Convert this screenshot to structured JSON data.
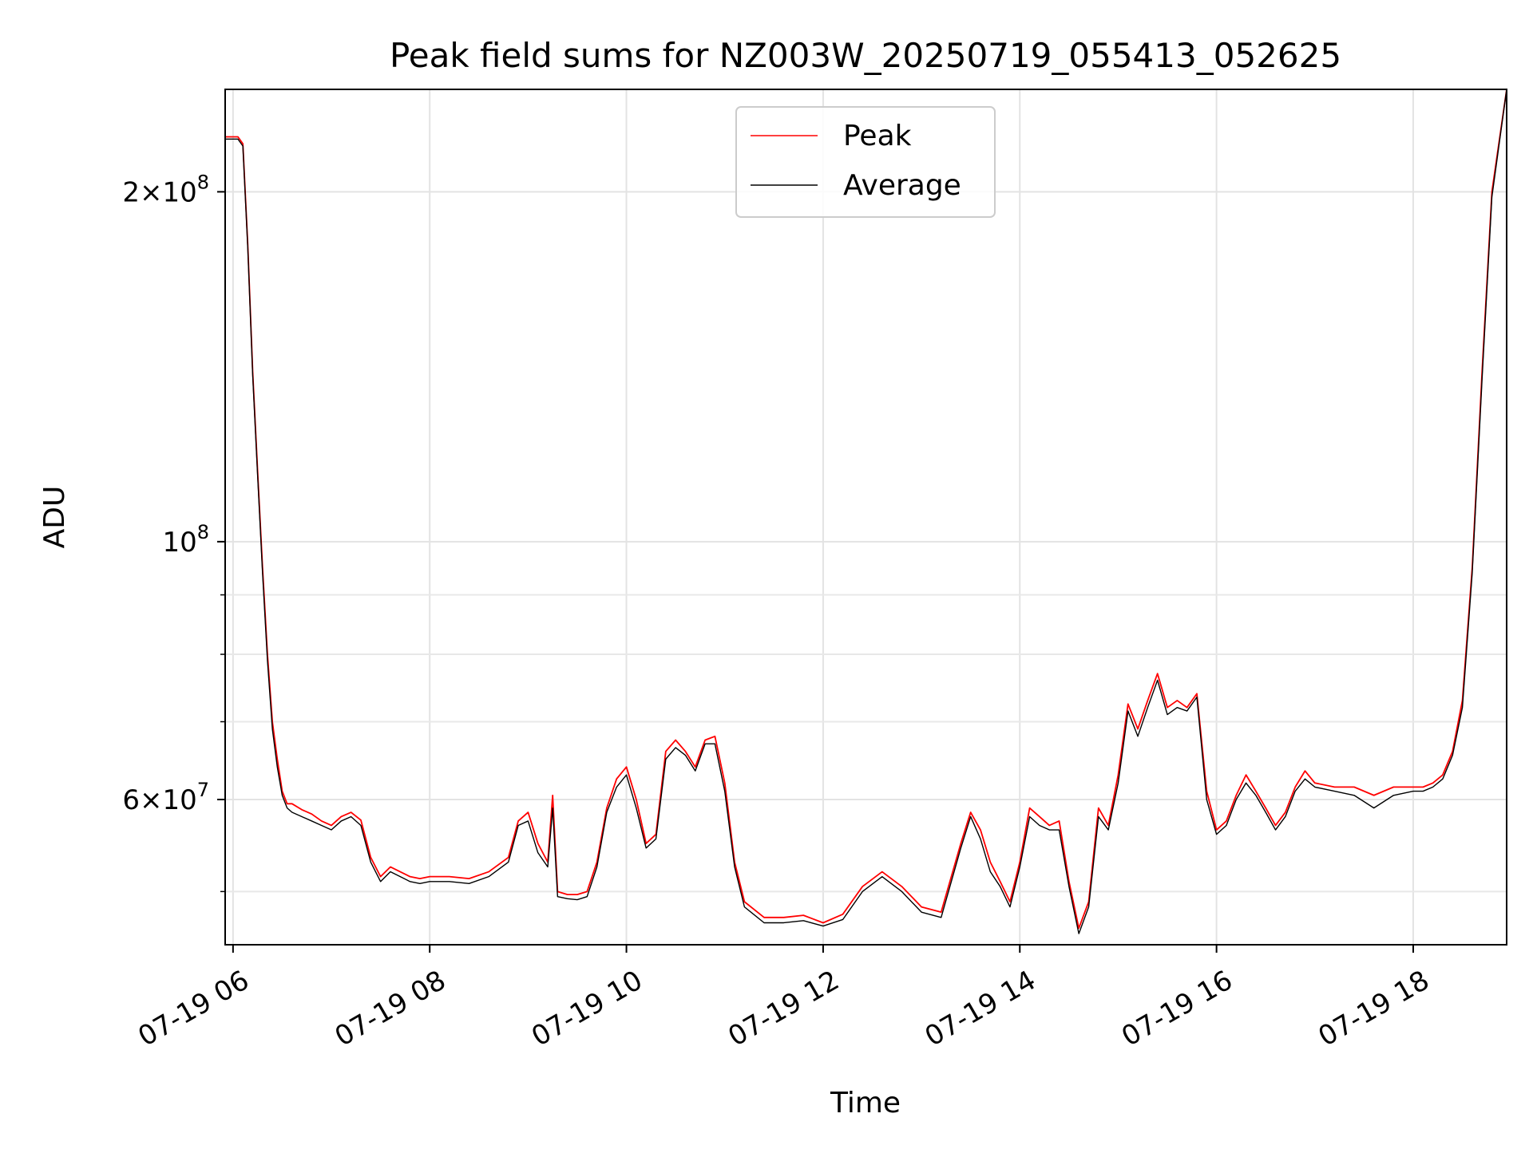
{
  "chart_data": {
    "type": "line",
    "title": "Peak field sums for NZ003W_20250719_055413_052625",
    "xlabel": "Time",
    "ylabel": "ADU",
    "x_unit": "hours (2025-07-19)",
    "xlim": [
      5.92,
      18.95
    ],
    "ylim": [
      45000000,
      245000000
    ],
    "yscale": "log",
    "grid": true,
    "legend_position": "top-center",
    "x_ticks": [
      {
        "value": 6,
        "label": "07-19 06"
      },
      {
        "value": 8,
        "label": "07-19 08"
      },
      {
        "value": 10,
        "label": "07-19 10"
      },
      {
        "value": 12,
        "label": "07-19 12"
      },
      {
        "value": 14,
        "label": "07-19 14"
      },
      {
        "value": 16,
        "label": "07-19 16"
      },
      {
        "value": 18,
        "label": "07-19 18"
      }
    ],
    "y_ticks": [
      {
        "value": 60000000,
        "mantissa": "6",
        "exponent": "7"
      },
      {
        "value": 100000000,
        "mantissa": "",
        "exponent": "8"
      },
      {
        "value": 200000000,
        "mantissa": "2",
        "exponent": "8"
      }
    ],
    "y_minor_ticks": [
      50000000,
      70000000,
      80000000,
      90000000
    ],
    "series": [
      {
        "name": "Peak",
        "color": "#ff0000",
        "x": [
          5.92,
          6.05,
          6.1,
          6.15,
          6.2,
          6.25,
          6.3,
          6.35,
          6.4,
          6.45,
          6.5,
          6.55,
          6.6,
          6.7,
          6.8,
          6.9,
          7.0,
          7.1,
          7.2,
          7.3,
          7.4,
          7.5,
          7.6,
          7.7,
          7.8,
          7.9,
          8.0,
          8.2,
          8.4,
          8.6,
          8.8,
          8.9,
          9.0,
          9.1,
          9.2,
          9.25,
          9.3,
          9.4,
          9.5,
          9.6,
          9.7,
          9.8,
          9.9,
          10.0,
          10.1,
          10.2,
          10.3,
          10.4,
          10.5,
          10.6,
          10.7,
          10.8,
          10.9,
          11.0,
          11.1,
          11.2,
          11.4,
          11.6,
          11.8,
          12.0,
          12.2,
          12.4,
          12.6,
          12.8,
          13.0,
          13.2,
          13.4,
          13.5,
          13.6,
          13.7,
          13.8,
          13.9,
          14.0,
          14.1,
          14.2,
          14.3,
          14.4,
          14.5,
          14.6,
          14.7,
          14.8,
          14.9,
          15.0,
          15.1,
          15.2,
          15.3,
          15.4,
          15.5,
          15.6,
          15.7,
          15.8,
          15.9,
          16.0,
          16.1,
          16.2,
          16.3,
          16.4,
          16.5,
          16.6,
          16.7,
          16.8,
          16.9,
          17.0,
          17.2,
          17.4,
          17.6,
          17.8,
          18.0,
          18.1,
          18.2,
          18.3,
          18.4,
          18.5,
          18.6,
          18.7,
          18.8,
          18.95
        ],
        "values": [
          223000000,
          223000000,
          220000000,
          180000000,
          140000000,
          115000000,
          95000000,
          80000000,
          70000000,
          65000000,
          61000000,
          59500000,
          59500000,
          58800000,
          58300000,
          57500000,
          57000000,
          58000000,
          58500000,
          57600000,
          53500000,
          51500000,
          52500000,
          52000000,
          51500000,
          51300000,
          51500000,
          51500000,
          51300000,
          52000000,
          53500000,
          57500000,
          58500000,
          55000000,
          53000000,
          60500000,
          50000000,
          49700000,
          49700000,
          50000000,
          53000000,
          59000000,
          62500000,
          64000000,
          60000000,
          55000000,
          56000000,
          66000000,
          67500000,
          66000000,
          64000000,
          67500000,
          68000000,
          62000000,
          53000000,
          49000000,
          47500000,
          47500000,
          47700000,
          47000000,
          47800000,
          50500000,
          52000000,
          50500000,
          48500000,
          48000000,
          55000000,
          58500000,
          56500000,
          53000000,
          51000000,
          49000000,
          53000000,
          59000000,
          58000000,
          57000000,
          57500000,
          51000000,
          46500000,
          49000000,
          59000000,
          57000000,
          63000000,
          72500000,
          69000000,
          73000000,
          77000000,
          72000000,
          73000000,
          72000000,
          74000000,
          61000000,
          56500000,
          57500000,
          60500000,
          63000000,
          61000000,
          59000000,
          57000000,
          58500000,
          61500000,
          63500000,
          62000000,
          61500000,
          61500000,
          60500000,
          61500000,
          61500000,
          61500000,
          62000000,
          63000000,
          66000000,
          73000000,
          95000000,
          140000000,
          200000000,
          245000000
        ]
      },
      {
        "name": "Average",
        "color": "#000000",
        "x": [
          5.92,
          6.05,
          6.1,
          6.15,
          6.2,
          6.25,
          6.3,
          6.35,
          6.4,
          6.45,
          6.5,
          6.55,
          6.6,
          6.7,
          6.8,
          6.9,
          7.0,
          7.1,
          7.2,
          7.3,
          7.4,
          7.5,
          7.6,
          7.7,
          7.8,
          7.9,
          8.0,
          8.2,
          8.4,
          8.6,
          8.8,
          8.9,
          9.0,
          9.1,
          9.2,
          9.25,
          9.3,
          9.4,
          9.5,
          9.6,
          9.7,
          9.8,
          9.9,
          10.0,
          10.1,
          10.2,
          10.3,
          10.4,
          10.5,
          10.6,
          10.7,
          10.8,
          10.9,
          11.0,
          11.1,
          11.2,
          11.4,
          11.6,
          11.8,
          12.0,
          12.2,
          12.4,
          12.6,
          12.8,
          13.0,
          13.2,
          13.4,
          13.5,
          13.6,
          13.7,
          13.8,
          13.9,
          14.0,
          14.1,
          14.2,
          14.3,
          14.4,
          14.5,
          14.6,
          14.7,
          14.8,
          14.9,
          15.0,
          15.1,
          15.2,
          15.3,
          15.4,
          15.5,
          15.6,
          15.7,
          15.8,
          15.9,
          16.0,
          16.1,
          16.2,
          16.3,
          16.4,
          16.5,
          16.6,
          16.7,
          16.8,
          16.9,
          17.0,
          17.2,
          17.4,
          17.6,
          17.8,
          18.0,
          18.1,
          18.2,
          18.3,
          18.4,
          18.5,
          18.6,
          18.7,
          18.8,
          18.95
        ],
        "values": [
          222000000,
          222000000,
          219000000,
          179000000,
          139000000,
          114000000,
          94000000,
          79000000,
          69000000,
          64000000,
          60500000,
          59000000,
          58500000,
          58000000,
          57500000,
          57000000,
          56500000,
          57500000,
          58000000,
          57000000,
          53000000,
          51000000,
          52000000,
          51500000,
          51000000,
          50800000,
          51000000,
          51000000,
          50800000,
          51500000,
          53000000,
          57000000,
          57500000,
          54000000,
          52500000,
          59000000,
          49500000,
          49300000,
          49200000,
          49500000,
          52500000,
          58500000,
          61500000,
          63000000,
          59000000,
          54500000,
          55500000,
          65000000,
          66500000,
          65500000,
          63500000,
          67000000,
          67000000,
          61000000,
          52500000,
          48500000,
          47000000,
          47000000,
          47200000,
          46700000,
          47300000,
          50000000,
          51500000,
          50000000,
          48000000,
          47500000,
          54500000,
          58000000,
          55500000,
          52000000,
          50500000,
          48500000,
          52500000,
          58000000,
          57000000,
          56500000,
          56500000,
          50500000,
          46000000,
          48500000,
          58000000,
          56500000,
          62000000,
          71500000,
          68000000,
          72000000,
          76000000,
          71000000,
          72000000,
          71500000,
          73500000,
          60000000,
          56000000,
          57000000,
          60000000,
          62000000,
          60500000,
          58500000,
          56500000,
          58000000,
          61000000,
          62500000,
          61500000,
          61000000,
          60500000,
          59000000,
          60500000,
          61000000,
          61000000,
          61500000,
          62500000,
          65500000,
          72000000,
          94000000,
          138000000,
          198000000,
          245000000
        ]
      }
    ]
  }
}
